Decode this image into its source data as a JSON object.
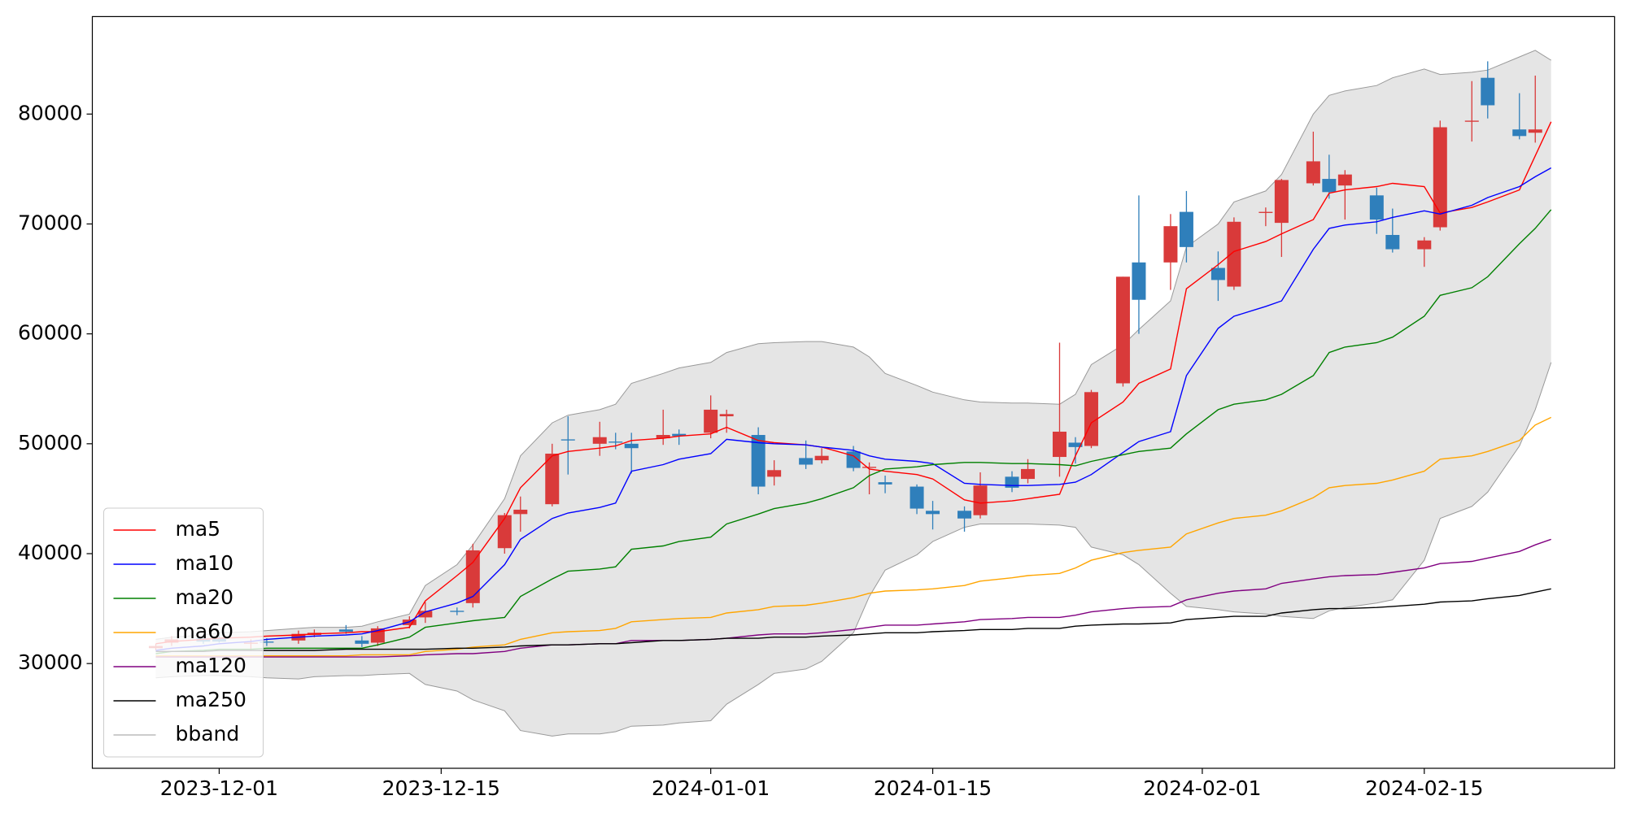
{
  "chart_data": {
    "type": "candlestick",
    "x": [
      "2023-11-27",
      "2023-11-28",
      "2023-11-30",
      "2023-12-01",
      "2023-12-03",
      "2023-12-04",
      "2023-12-06",
      "2023-12-07",
      "2023-12-09",
      "2023-12-10",
      "2023-12-11",
      "2023-12-13",
      "2023-12-14",
      "2023-12-16",
      "2023-12-17",
      "2023-12-19",
      "2023-12-20",
      "2023-12-22",
      "2023-12-23",
      "2023-12-25",
      "2023-12-26",
      "2023-12-27",
      "2023-12-29",
      "2023-12-30",
      "2024-01-01",
      "2024-01-02",
      "2024-01-04",
      "2024-01-05",
      "2024-01-07",
      "2024-01-08",
      "2024-01-10",
      "2024-01-11",
      "2024-01-12",
      "2024-01-14",
      "2024-01-15",
      "2024-01-17",
      "2024-01-18",
      "2024-01-20",
      "2024-01-21",
      "2024-01-23",
      "2024-01-24",
      "2024-01-25",
      "2024-01-27",
      "2024-01-28",
      "2024-01-30",
      "2024-01-31",
      "2024-02-02",
      "2024-02-03",
      "2024-02-05",
      "2024-02-06",
      "2024-02-08",
      "2024-02-09",
      "2024-02-10",
      "2024-02-12",
      "2024-02-13",
      "2024-02-15",
      "2024-02-16",
      "2024-02-18",
      "2024-02-19",
      "2024-02-21",
      "2024-02-22",
      "2024-02-23"
    ],
    "open": [
      31400,
      31900,
      32300,
      32300,
      31800,
      32000,
      32100,
      32600,
      33100,
      32100,
      31900,
      33500,
      34200,
      34800,
      35500,
      40500,
      43600,
      44500,
      50400,
      50000,
      50200,
      50000,
      50500,
      50900,
      51000,
      52500,
      50800,
      47000,
      48700,
      48500,
      49300,
      47800,
      46500,
      46100,
      43900,
      43900,
      43500,
      47000,
      46800,
      48800,
      50100,
      49800,
      55500,
      66500,
      66500,
      71100,
      66000,
      64300,
      71000,
      70100,
      73700,
      74100,
      73500,
      72600,
      69000,
      67700,
      69700,
      79300,
      83300,
      78600,
      78300,
      null
    ],
    "high": [
      31800,
      32500,
      32500,
      32600,
      32200,
      32300,
      33000,
      33100,
      33500,
      32500,
      33400,
      34300,
      35600,
      35100,
      40900,
      43700,
      45200,
      50000,
      52500,
      52000,
      51000,
      51000,
      53100,
      51300,
      54400,
      53100,
      51500,
      48500,
      50300,
      49600,
      49800,
      48300,
      47100,
      46300,
      44800,
      44300,
      47400,
      47500,
      48600,
      59200,
      50600,
      54900,
      65200,
      72600,
      70900,
      73000,
      67500,
      70600,
      71500,
      74100,
      78400,
      76300,
      74900,
      73300,
      71400,
      68800,
      79400,
      83000,
      84800,
      81900,
      83500,
      null
    ],
    "low": [
      31200,
      31600,
      31800,
      31900,
      31200,
      31600,
      31800,
      32400,
      32700,
      31500,
      31600,
      33200,
      33700,
      34400,
      35100,
      40000,
      42000,
      44300,
      47200,
      48900,
      49500,
      47300,
      49900,
      49900,
      50500,
      51000,
      45400,
      46200,
      47700,
      48200,
      47500,
      45400,
      45500,
      43600,
      42200,
      42000,
      43200,
      45600,
      46400,
      47000,
      48200,
      49600,
      55200,
      60000,
      64000,
      66500,
      63000,
      64000,
      69800,
      67000,
      73500,
      72300,
      70400,
      69100,
      67400,
      66100,
      69400,
      77500,
      79600,
      77700,
      77400,
      null
    ],
    "close": [
      31600,
      32200,
      32000,
      32000,
      31900,
      31900,
      32700,
      32800,
      32900,
      31800,
      33200,
      34000,
      34800,
      34700,
      40300,
      43500,
      44000,
      49100,
      50300,
      50600,
      50100,
      49600,
      50800,
      50700,
      53100,
      52700,
      46100,
      47600,
      48100,
      48900,
      47800,
      47900,
      46300,
      44100,
      43600,
      43200,
      46200,
      46000,
      47700,
      51100,
      49700,
      54700,
      65200,
      63100,
      69800,
      67900,
      64900,
      70200,
      71100,
      74000,
      75700,
      72900,
      74500,
      70400,
      67700,
      68500,
      78800,
      79400,
      80800,
      78000,
      78600,
      null
    ],
    "up_color": "#d93a3a",
    "down_color": "#2f7fbb",
    "series": [
      {
        "name": "ma5",
        "color": "#ff0000",
        "values": [
          31800,
          32000,
          32200,
          32300,
          32400,
          32500,
          32600,
          32700,
          32800,
          32900,
          32900,
          33300,
          35700,
          38000,
          39200,
          43200,
          46000,
          48900,
          49300,
          49600,
          49800,
          50300,
          50500,
          50700,
          50900,
          51500,
          50300,
          50100,
          49900,
          49700,
          48900,
          47700,
          47500,
          47200,
          46800,
          44900,
          44600,
          44800,
          45000,
          45400,
          48900,
          51900,
          53800,
          55500,
          56800,
          64100,
          66300,
          67500,
          68400,
          69100,
          70400,
          72800,
          73100,
          73400,
          73700,
          73400,
          71000,
          71500,
          72000,
          73100,
          76200,
          79300
        ]
      },
      {
        "name": "ma10",
        "color": "#0000ff",
        "values": [
          31200,
          31400,
          31600,
          31800,
          32000,
          32200,
          32400,
          32500,
          32600,
          32700,
          33000,
          33800,
          34700,
          35500,
          36100,
          39000,
          41300,
          43200,
          43700,
          44200,
          44600,
          47500,
          48100,
          48600,
          49100,
          50400,
          50100,
          50000,
          49900,
          49700,
          49400,
          48900,
          48600,
          48400,
          48200,
          46400,
          46300,
          46200,
          46200,
          46300,
          46500,
          47200,
          49200,
          50200,
          51100,
          56200,
          60500,
          61600,
          62500,
          63000,
          67700,
          69600,
          69900,
          70200,
          70600,
          71200,
          70900,
          71700,
          72400,
          73400,
          74300,
          75100
        ]
      },
      {
        "name": "ma20",
        "color": "#008000",
        "values": [
          30900,
          31100,
          31200,
          31300,
          31300,
          31400,
          31400,
          31400,
          31400,
          31400,
          31700,
          32400,
          33300,
          33700,
          33900,
          34200,
          36100,
          37700,
          38400,
          38600,
          38800,
          40400,
          40700,
          41100,
          41500,
          42700,
          43600,
          44100,
          44600,
          45000,
          46000,
          47100,
          47700,
          47900,
          48100,
          48300,
          48300,
          48200,
          48200,
          48100,
          48000,
          48400,
          49000,
          49300,
          49600,
          50900,
          53100,
          53600,
          54000,
          54500,
          56200,
          58300,
          58800,
          59200,
          59700,
          61600,
          63500,
          64200,
          65200,
          68200,
          69600,
          71300
        ]
      },
      {
        "name": "ma60",
        "color": "#ffa500",
        "values": [
          30700,
          30700,
          30700,
          30700,
          30700,
          30700,
          30700,
          30700,
          30700,
          30800,
          30800,
          30800,
          31100,
          31300,
          31500,
          31700,
          32200,
          32800,
          32900,
          33000,
          33200,
          33800,
          34000,
          34100,
          34200,
          34600,
          34900,
          35200,
          35300,
          35500,
          36000,
          36400,
          36600,
          36700,
          36800,
          37100,
          37500,
          37800,
          38000,
          38200,
          38700,
          39400,
          40100,
          40300,
          40600,
          41800,
          42800,
          43200,
          43500,
          43900,
          45100,
          46000,
          46200,
          46400,
          46700,
          47500,
          48600,
          48900,
          49300,
          50300,
          51700,
          52400
        ]
      },
      {
        "name": "ma120",
        "color": "#800080",
        "values": [
          30600,
          30600,
          30600,
          30600,
          30600,
          30600,
          30600,
          30600,
          30600,
          30600,
          30600,
          30700,
          30800,
          30900,
          30900,
          31100,
          31400,
          31700,
          31700,
          31800,
          31800,
          32100,
          32100,
          32100,
          32200,
          32300,
          32600,
          32700,
          32700,
          32800,
          33100,
          33300,
          33500,
          33500,
          33600,
          33800,
          34000,
          34100,
          34200,
          34200,
          34400,
          34700,
          35000,
          35100,
          35200,
          35800,
          36400,
          36600,
          36800,
          37300,
          37700,
          37900,
          38000,
          38100,
          38300,
          38700,
          39100,
          39300,
          39600,
          40200,
          40800,
          41300
        ]
      },
      {
        "name": "ma250",
        "color": "#000000",
        "values": [
          31100,
          31100,
          31100,
          31200,
          31200,
          31200,
          31200,
          31200,
          31300,
          31300,
          31300,
          31300,
          31300,
          31400,
          31400,
          31500,
          31600,
          31700,
          31700,
          31800,
          31800,
          31900,
          32100,
          32100,
          32200,
          32300,
          32300,
          32400,
          32400,
          32500,
          32600,
          32700,
          32800,
          32800,
          32900,
          33000,
          33100,
          33100,
          33200,
          33200,
          33400,
          33500,
          33600,
          33600,
          33700,
          34000,
          34200,
          34300,
          34300,
          34600,
          34900,
          35000,
          35000,
          35100,
          35200,
          35400,
          35600,
          35700,
          35900,
          36200,
          36500,
          36800
        ]
      }
    ],
    "band": {
      "name": "bband",
      "color": "#999999",
      "fill": "#e5e5e5",
      "upper": [
        32200,
        32400,
        32600,
        32800,
        32900,
        33000,
        33200,
        33300,
        33300,
        33400,
        33800,
        34500,
        37100,
        39000,
        40800,
        45000,
        48900,
        51900,
        52600,
        53100,
        53600,
        55500,
        56400,
        56900,
        57400,
        58300,
        59100,
        59200,
        59300,
        59300,
        58800,
        57900,
        56400,
        55300,
        54700,
        54000,
        53800,
        53700,
        53700,
        53600,
        54500,
        57200,
        59000,
        60400,
        63000,
        67900,
        70000,
        72000,
        73000,
        74500,
        80000,
        81700,
        82100,
        82600,
        83300,
        84100,
        83600,
        83800,
        84000,
        85200,
        85800,
        84900
      ],
      "lower": [
        28700,
        28800,
        28900,
        28900,
        28800,
        28700,
        28600,
        28800,
        28900,
        28900,
        29000,
        29100,
        28100,
        27500,
        26700,
        25700,
        23900,
        23400,
        23600,
        23600,
        23800,
        24300,
        24400,
        24600,
        24800,
        26300,
        28100,
        29100,
        29500,
        30200,
        32800,
        36100,
        38500,
        39900,
        41100,
        42400,
        42700,
        42700,
        42700,
        42600,
        42400,
        40600,
        39900,
        39000,
        36400,
        35200,
        34900,
        34700,
        34500,
        34300,
        34100,
        34800,
        35100,
        35500,
        35800,
        39400,
        43200,
        44300,
        45600,
        49800,
        53100,
        57400
      ]
    },
    "xlim": [
      "2023-11-23",
      "2024-02-27"
    ],
    "xticks": [
      "2023-12-01",
      "2023-12-15",
      "2024-01-01",
      "2024-01-15",
      "2024-02-01",
      "2024-02-15"
    ],
    "ylim": [
      20470,
      88870
    ],
    "yticks": [
      30000,
      40000,
      50000,
      60000,
      70000,
      80000
    ],
    "legend": "lower left"
  }
}
